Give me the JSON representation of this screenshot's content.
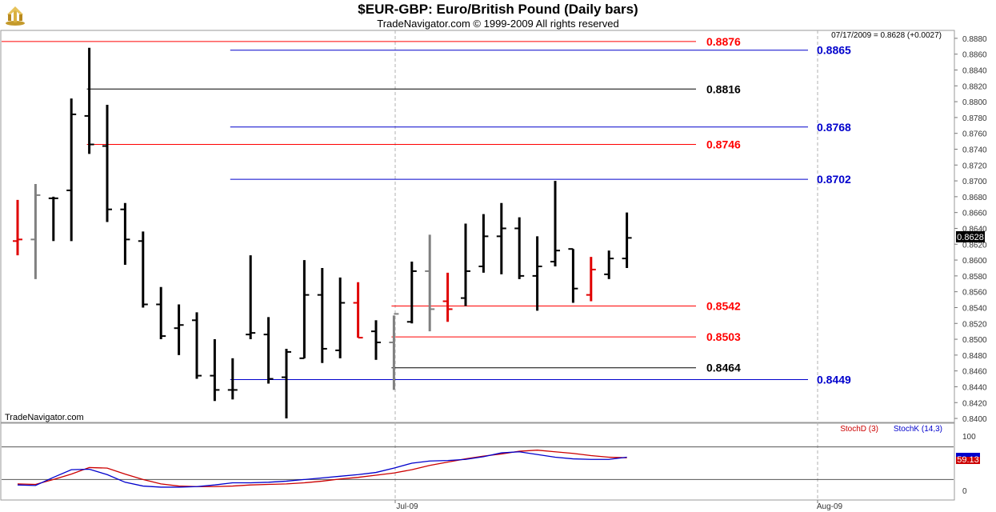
{
  "header": {
    "title": "$EUR-GBP:  Euro/British Pound  (Daily bars)",
    "subtitle": "TradeNavigator.com © 1999-2009 All rights reserved"
  },
  "info": {
    "last_quote": "07/17/2009 = 0.8628 (+0.0027)",
    "watermark": "TradeNavigator.com",
    "current_price_tag": "0.8628",
    "stoch_value_tag": "59.13"
  },
  "colors": {
    "up_bar": "#000000",
    "down_bar": "#000000",
    "red_bar": "#e00000",
    "gray_bar": "#808080",
    "red_level": "#ff0000",
    "blue_level": "#0000cc",
    "black_level": "#000000",
    "stoch_d": "#cc0000",
    "stoch_k": "#0000cc"
  },
  "chart_data": [
    {
      "type": "ohlc",
      "ylim": [
        0.8395,
        0.889
      ],
      "y_ticks": [
        "0.8880",
        "0.8860",
        "0.8840",
        "0.8820",
        "0.8800",
        "0.8780",
        "0.8760",
        "0.8740",
        "0.8720",
        "0.8700",
        "0.8680",
        "0.8660",
        "0.8640",
        "0.8620",
        "0.8600",
        "0.8580",
        "0.8560",
        "0.8540",
        "0.8520",
        "0.8500",
        "0.8480",
        "0.8460",
        "0.8440",
        "0.8420",
        "0.8400"
      ],
      "x_labels": [
        "Jul-09",
        "Aug-09"
      ],
      "bars": [
        {
          "o": 0.8624,
          "h": 0.8676,
          "l": 0.8606,
          "c": 0.8626,
          "color": "red"
        },
        {
          "o": 0.8626,
          "h": 0.8696,
          "l": 0.8576,
          "c": 0.8682,
          "color": "gray"
        },
        {
          "o": 0.8678,
          "h": 0.868,
          "l": 0.8624,
          "c": 0.8678,
          "color": "black"
        },
        {
          "o": 0.8688,
          "h": 0.8804,
          "l": 0.8624,
          "c": 0.8784,
          "color": "black"
        },
        {
          "o": 0.8782,
          "h": 0.8868,
          "l": 0.8734,
          "c": 0.8746,
          "color": "black"
        },
        {
          "o": 0.8744,
          "h": 0.8796,
          "l": 0.8648,
          "c": 0.8664,
          "color": "black"
        },
        {
          "o": 0.8664,
          "h": 0.8672,
          "l": 0.8594,
          "c": 0.8626,
          "color": "black"
        },
        {
          "o": 0.8624,
          "h": 0.8636,
          "l": 0.854,
          "c": 0.8544,
          "color": "black"
        },
        {
          "o": 0.8544,
          "h": 0.8566,
          "l": 0.85,
          "c": 0.8504,
          "color": "black"
        },
        {
          "o": 0.8514,
          "h": 0.8544,
          "l": 0.848,
          "c": 0.8518,
          "color": "black"
        },
        {
          "o": 0.8524,
          "h": 0.8534,
          "l": 0.845,
          "c": 0.8454,
          "color": "black"
        },
        {
          "o": 0.8454,
          "h": 0.85,
          "l": 0.8422,
          "c": 0.8436,
          "color": "black"
        },
        {
          "o": 0.8436,
          "h": 0.8476,
          "l": 0.8424,
          "c": 0.8436,
          "color": "black"
        },
        {
          "o": 0.8506,
          "h": 0.8606,
          "l": 0.85,
          "c": 0.8508,
          "color": "black"
        },
        {
          "o": 0.8506,
          "h": 0.8528,
          "l": 0.8444,
          "c": 0.845,
          "color": "black"
        },
        {
          "o": 0.8452,
          "h": 0.8488,
          "l": 0.84,
          "c": 0.8484,
          "color": "black"
        },
        {
          "o": 0.8476,
          "h": 0.86,
          "l": 0.8476,
          "c": 0.8556,
          "color": "black"
        },
        {
          "o": 0.8556,
          "h": 0.859,
          "l": 0.847,
          "c": 0.8488,
          "color": "black"
        },
        {
          "o": 0.8486,
          "h": 0.8578,
          "l": 0.8476,
          "c": 0.8546,
          "color": "black"
        },
        {
          "o": 0.8546,
          "h": 0.8572,
          "l": 0.8502,
          "c": 0.8502,
          "color": "red"
        },
        {
          "o": 0.851,
          "h": 0.8524,
          "l": 0.8474,
          "c": 0.8496,
          "color": "black"
        },
        {
          "o": 0.8496,
          "h": 0.853,
          "l": 0.8436,
          "c": 0.8532,
          "color": "gray"
        },
        {
          "o": 0.8522,
          "h": 0.8598,
          "l": 0.852,
          "c": 0.8586,
          "color": "black"
        },
        {
          "o": 0.8586,
          "h": 0.8632,
          "l": 0.851,
          "c": 0.8538,
          "color": "gray"
        },
        {
          "o": 0.8548,
          "h": 0.8584,
          "l": 0.8522,
          "c": 0.8538,
          "color": "red"
        },
        {
          "o": 0.8552,
          "h": 0.8646,
          "l": 0.8542,
          "c": 0.8586,
          "color": "black"
        },
        {
          "o": 0.8592,
          "h": 0.8658,
          "l": 0.8584,
          "c": 0.863,
          "color": "black"
        },
        {
          "o": 0.863,
          "h": 0.8672,
          "l": 0.8582,
          "c": 0.864,
          "color": "black"
        },
        {
          "o": 0.864,
          "h": 0.8654,
          "l": 0.8576,
          "c": 0.858,
          "color": "black"
        },
        {
          "o": 0.858,
          "h": 0.863,
          "l": 0.8536,
          "c": 0.8592,
          "color": "black"
        },
        {
          "o": 0.8598,
          "h": 0.87,
          "l": 0.8592,
          "c": 0.8612,
          "color": "black"
        },
        {
          "o": 0.8614,
          "h": 0.8614,
          "l": 0.8546,
          "c": 0.8564,
          "color": "black"
        },
        {
          "o": 0.8556,
          "h": 0.8604,
          "l": 0.8548,
          "c": 0.8588,
          "color": "red"
        },
        {
          "o": 0.8582,
          "h": 0.8612,
          "l": 0.8576,
          "c": 0.8602,
          "color": "black"
        },
        {
          "o": 0.8602,
          "h": 0.866,
          "l": 0.859,
          "c": 0.8628,
          "color": "black"
        }
      ],
      "levels": [
        {
          "value": 0.8876,
          "label": "0.8876",
          "color": "red",
          "start_bar": -1
        },
        {
          "value": 0.8865,
          "label": "0.8865",
          "color": "blue",
          "start_bar": 12
        },
        {
          "value": 0.8816,
          "label": "0.8816",
          "color": "black",
          "start_bar": 4
        },
        {
          "value": 0.8768,
          "label": "0.8768",
          "color": "blue",
          "start_bar": 12
        },
        {
          "value": 0.8746,
          "label": "0.8746",
          "color": "red",
          "start_bar": 4
        },
        {
          "value": 0.8702,
          "label": "0.8702",
          "color": "blue",
          "start_bar": 12
        },
        {
          "value": 0.8542,
          "label": "0.8542",
          "color": "red",
          "start_bar": 21
        },
        {
          "value": 0.8503,
          "label": "0.8503",
          "color": "red",
          "start_bar": 21
        },
        {
          "value": 0.8464,
          "label": "0.8464",
          "color": "black",
          "start_bar": 21
        },
        {
          "value": 0.8449,
          "label": "0.8449",
          "color": "blue",
          "start_bar": 12
        }
      ]
    },
    {
      "type": "line",
      "title": "StochD (3)  StochK (14,3)",
      "ylim": [
        0,
        100
      ],
      "y_ticks": [
        "100",
        "0"
      ],
      "reference_lines": [
        80,
        20
      ],
      "series": [
        {
          "name": "StochD (3)",
          "values": [
            12,
            11,
            20,
            30,
            42,
            41,
            30,
            20,
            12,
            8,
            7,
            7,
            8,
            10,
            11,
            12,
            14,
            17,
            21,
            24,
            28,
            32,
            38,
            46,
            52,
            58,
            63,
            67,
            72,
            74,
            71,
            68,
            64,
            61,
            60
          ]
        },
        {
          "name": "StochK (14,3)",
          "values": [
            10,
            9,
            24,
            38,
            39,
            29,
            15,
            8,
            6,
            6,
            7,
            10,
            14,
            14,
            15,
            17,
            20,
            23,
            26,
            29,
            33,
            41,
            50,
            54,
            55,
            57,
            62,
            69,
            71,
            66,
            61,
            58,
            57,
            57,
            61
          ]
        }
      ]
    }
  ]
}
